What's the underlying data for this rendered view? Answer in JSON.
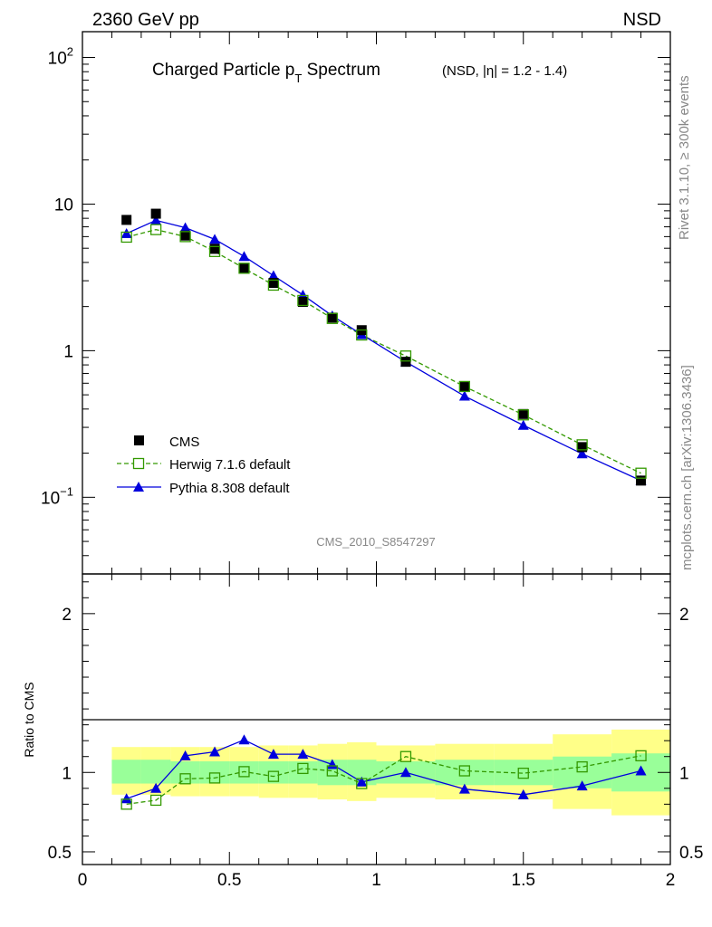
{
  "header": {
    "left": "2360 GeV pp",
    "right": "NSD"
  },
  "title": {
    "main": "Charged Particle p",
    "sub": "T",
    "rest": " Spectrum",
    "extra": "(NSD, |η| = 1.2 - 1.4)"
  },
  "side_labels": {
    "top": "Rivet 3.1.10, ≥ 300k events",
    "bottom": "mcplots.cern.ch [arXiv:1306.3436]"
  },
  "watermark": "CMS_2010_S8547297",
  "colors": {
    "cms": "#000000",
    "herwig": "#339900",
    "pythia": "#0000dd",
    "band_inner": "#99ff99",
    "band_outer": "#ffff88"
  },
  "chart_data": [
    {
      "type": "scatter",
      "panel": "main",
      "xlim": [
        0,
        2
      ],
      "ylim": [
        0.03,
        150
      ],
      "yscale": "log",
      "y_tick_labels": [
        "10^2",
        "10",
        "1",
        "10^-1"
      ],
      "legend_position": "bottom-left",
      "series": [
        {
          "name": "CMS",
          "style": "square",
          "x": [
            0.15,
            0.25,
            0.35,
            0.45,
            0.55,
            0.65,
            0.75,
            0.85,
            0.95,
            1.1,
            1.3,
            1.5,
            1.7,
            1.9
          ],
          "y": [
            7.8,
            8.6,
            6.1,
            4.95,
            3.65,
            2.9,
            2.15,
            1.68,
            1.38,
            0.84,
            0.565,
            0.37,
            0.22,
            0.13
          ]
        },
        {
          "name": "Herwig 7.1.6 default",
          "style": "open-square-dashed",
          "x": [
            0.15,
            0.25,
            0.35,
            0.45,
            0.55,
            0.65,
            0.75,
            0.85,
            0.95,
            1.1,
            1.3,
            1.5,
            1.7,
            1.9
          ],
          "y": [
            5.95,
            6.7,
            6.0,
            4.75,
            3.65,
            2.8,
            2.2,
            1.66,
            1.28,
            0.92,
            0.57,
            0.365,
            0.228,
            0.146
          ]
        },
        {
          "name": "Pythia 8.308 default",
          "style": "triangle-solid",
          "x": [
            0.15,
            0.25,
            0.35,
            0.45,
            0.55,
            0.65,
            0.75,
            0.85,
            0.95,
            1.1,
            1.3,
            1.5,
            1.7,
            1.9
          ],
          "y": [
            6.3,
            7.75,
            6.9,
            5.75,
            4.4,
            3.25,
            2.4,
            1.73,
            1.29,
            0.84,
            0.49,
            0.31,
            0.198,
            0.13
          ]
        }
      ]
    },
    {
      "type": "line",
      "panel": "ratio",
      "ylabel": "Ratio to CMS",
      "xlim": [
        0,
        2
      ],
      "ylim": [
        0.42,
        2.25
      ],
      "x_tick_labels": [
        "0",
        "0.5",
        "1",
        "1.5",
        "2"
      ],
      "y_tick_labels": [
        "0.5",
        "1",
        "2"
      ],
      "reference_line": 1,
      "bands": [
        {
          "x0": 0.1,
          "x1": 0.2,
          "inner": [
            0.93,
            1.08
          ],
          "outer": [
            0.86,
            1.16
          ]
        },
        {
          "x0": 0.2,
          "x1": 0.3,
          "inner": [
            0.93,
            1.08
          ],
          "outer": [
            0.86,
            1.16
          ]
        },
        {
          "x0": 0.3,
          "x1": 0.4,
          "inner": [
            0.93,
            1.07
          ],
          "outer": [
            0.85,
            1.16
          ]
        },
        {
          "x0": 0.4,
          "x1": 0.5,
          "inner": [
            0.93,
            1.07
          ],
          "outer": [
            0.85,
            1.16
          ]
        },
        {
          "x0": 0.5,
          "x1": 0.6,
          "inner": [
            0.93,
            1.07
          ],
          "outer": [
            0.85,
            1.16
          ]
        },
        {
          "x0": 0.6,
          "x1": 0.7,
          "inner": [
            0.93,
            1.07
          ],
          "outer": [
            0.84,
            1.17
          ]
        },
        {
          "x0": 0.7,
          "x1": 0.8,
          "inner": [
            0.93,
            1.07
          ],
          "outer": [
            0.84,
            1.17
          ]
        },
        {
          "x0": 0.8,
          "x1": 0.9,
          "inner": [
            0.92,
            1.08
          ],
          "outer": [
            0.83,
            1.18
          ]
        },
        {
          "x0": 0.9,
          "x1": 1.0,
          "inner": [
            0.92,
            1.08
          ],
          "outer": [
            0.82,
            1.19
          ]
        },
        {
          "x0": 1.0,
          "x1": 1.2,
          "inner": [
            0.93,
            1.07
          ],
          "outer": [
            0.84,
            1.17
          ]
        },
        {
          "x0": 1.2,
          "x1": 1.4,
          "inner": [
            0.92,
            1.08
          ],
          "outer": [
            0.83,
            1.18
          ]
        },
        {
          "x0": 1.4,
          "x1": 1.6,
          "inner": [
            0.92,
            1.08
          ],
          "outer": [
            0.83,
            1.18
          ]
        },
        {
          "x0": 1.6,
          "x1": 1.8,
          "inner": [
            0.9,
            1.1
          ],
          "outer": [
            0.77,
            1.24
          ]
        },
        {
          "x0": 1.8,
          "x1": 2.0,
          "inner": [
            0.88,
            1.12
          ],
          "outer": [
            0.73,
            1.27
          ]
        }
      ],
      "series": [
        {
          "name": "Herwig 7.1.6 default",
          "x": [
            0.15,
            0.25,
            0.35,
            0.45,
            0.55,
            0.65,
            0.75,
            0.85,
            0.95,
            1.1,
            1.3,
            1.5,
            1.7,
            1.9
          ],
          "y": [
            0.8,
            0.825,
            0.96,
            0.965,
            1.005,
            0.975,
            1.025,
            1.01,
            0.93,
            1.1,
            1.01,
            0.995,
            1.035,
            1.105
          ]
        },
        {
          "name": "Pythia 8.308 default",
          "x": [
            0.15,
            0.25,
            0.35,
            0.45,
            0.55,
            0.65,
            0.75,
            0.85,
            0.95,
            1.1,
            1.3,
            1.5,
            1.7,
            1.9
          ],
          "y": [
            0.835,
            0.9,
            1.105,
            1.13,
            1.205,
            1.115,
            1.115,
            1.05,
            0.94,
            1.0,
            0.895,
            0.86,
            0.915,
            1.01
          ]
        }
      ]
    }
  ]
}
